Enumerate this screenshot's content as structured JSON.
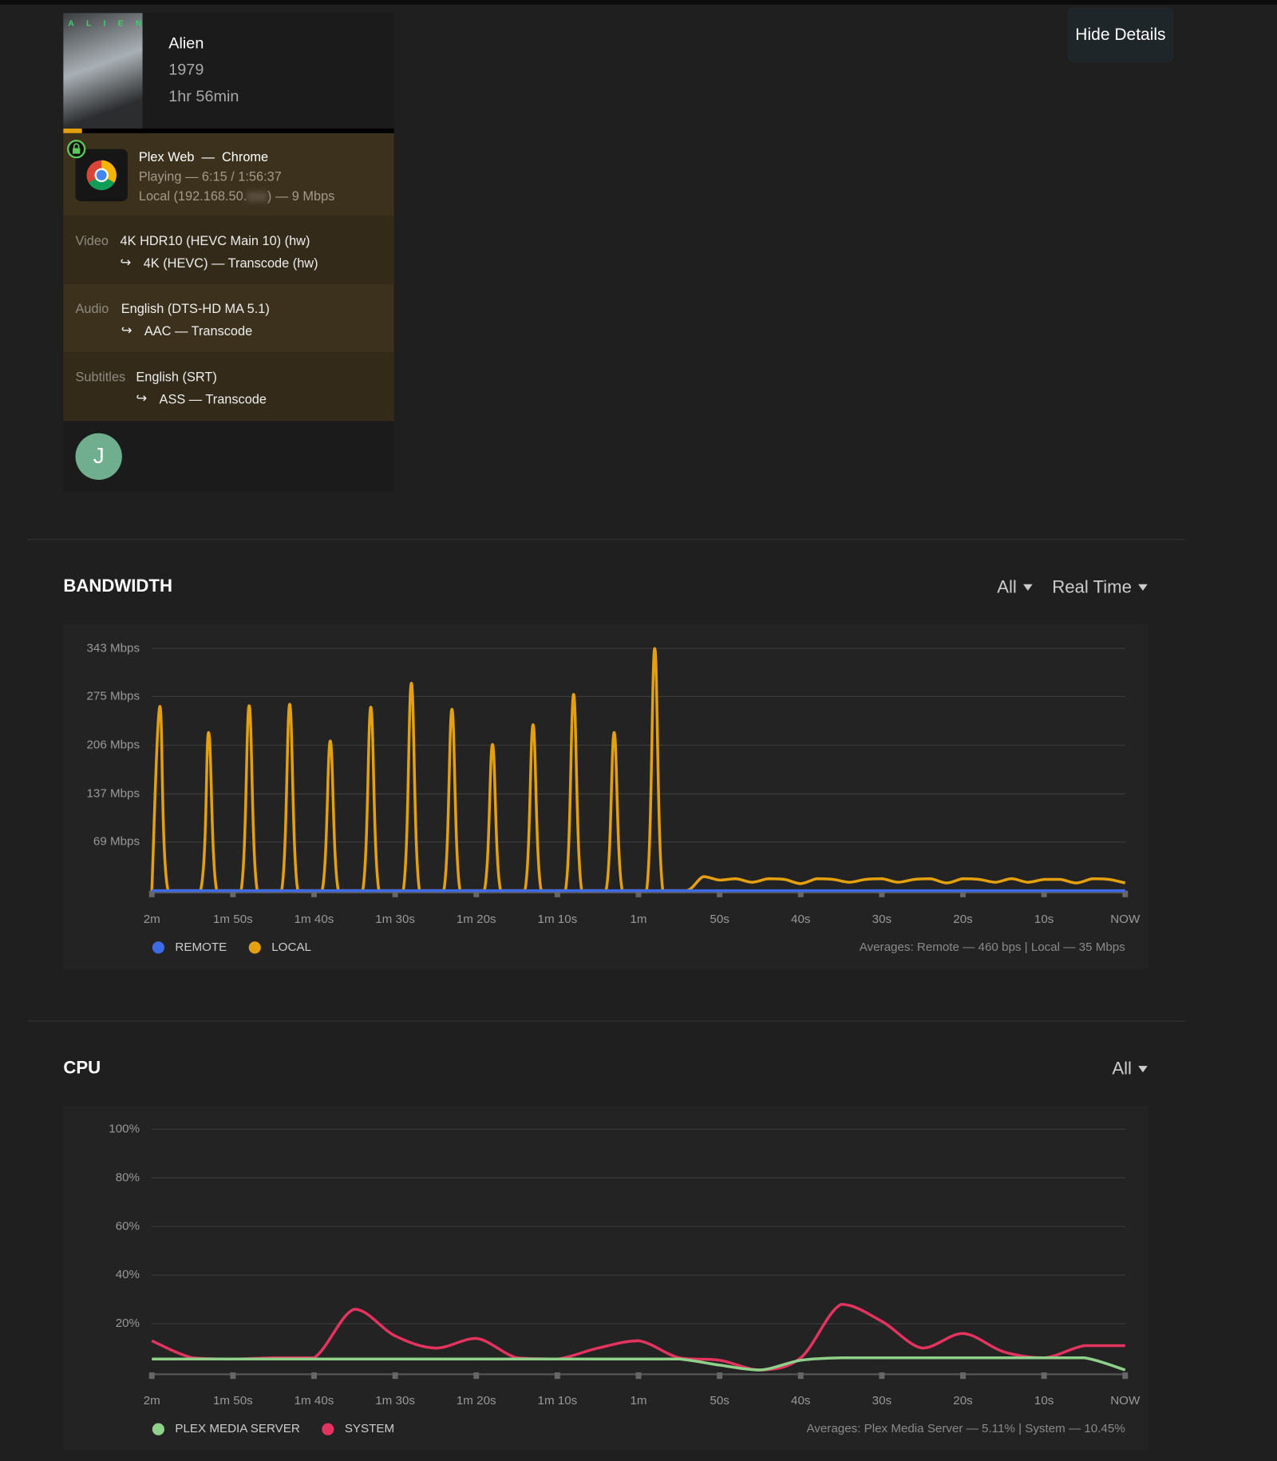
{
  "top_button": "Hide Details",
  "session": {
    "poster_title": "ALIEN",
    "title": "Alien",
    "year": "1979",
    "duration": "1hr 56min",
    "player": "Plex Web  —  Chrome",
    "state": "Playing — 6:15 / 1:56:37",
    "network_prefix": "Local (192.168.50.",
    "network_suffix": ") — 9 Mbps",
    "streams": [
      {
        "label": "Video",
        "source": "4K HDR10 (HEVC Main 10) (hw)",
        "target": "4K (HEVC) — Transcode (hw)"
      },
      {
        "label": "Audio",
        "source": "English (DTS-HD MA 5.1)",
        "target": "AAC — Transcode"
      },
      {
        "label": "Subtitles",
        "source": "English (SRT)",
        "target": "ASS — Transcode"
      }
    ],
    "user_initial": "J"
  },
  "controls": {
    "bandwidth": [
      "All",
      "Real Time"
    ],
    "cpu": [
      "All"
    ]
  },
  "chart_data": [
    {
      "type": "line",
      "title": "BANDWIDTH",
      "curve": "smooth",
      "x": [
        -120,
        -119,
        -118,
        -114,
        -113,
        -112,
        -109,
        -108,
        -107,
        -104,
        -103,
        -102,
        -99,
        -98,
        -97,
        -94,
        -93,
        -92,
        -89,
        -88,
        -87,
        -84,
        -83,
        -82,
        -79,
        -78,
        -77,
        -74,
        -73,
        -72,
        -69,
        -68,
        -67,
        -64,
        -63,
        -62,
        -59,
        -58,
        -57,
        -54,
        -52,
        -50,
        -48,
        -46,
        -44,
        -42,
        -40,
        -38,
        -36,
        -34,
        -32,
        -30,
        -28,
        -26,
        -24,
        -22,
        -20,
        -18,
        -16,
        -14,
        -12,
        -10,
        -8,
        -6,
        -4,
        -2,
        0
      ],
      "xlim": [
        -120,
        0
      ],
      "xticks": [
        {
          "value": -120,
          "label": "2m"
        },
        {
          "value": -110,
          "label": "1m 50s"
        },
        {
          "value": -100,
          "label": "1m 40s"
        },
        {
          "value": -90,
          "label": "1m 30s"
        },
        {
          "value": -80,
          "label": "1m 20s"
        },
        {
          "value": -70,
          "label": "1m 10s"
        },
        {
          "value": -60,
          "label": "1m"
        },
        {
          "value": -50,
          "label": "50s"
        },
        {
          "value": -40,
          "label": "40s"
        },
        {
          "value": -30,
          "label": "30s"
        },
        {
          "value": -20,
          "label": "20s"
        },
        {
          "value": -10,
          "label": "10s"
        },
        {
          "value": 0,
          "label": "NOW"
        }
      ],
      "ylim": [
        0,
        343
      ],
      "yticks": [
        {
          "value": 343,
          "label": "343 Mbps"
        },
        {
          "value": 275,
          "label": "275 Mbps"
        },
        {
          "value": 206,
          "label": "206 Mbps"
        },
        {
          "value": 137,
          "label": "137 Mbps"
        },
        {
          "value": 69,
          "label": "69 Mbps"
        }
      ],
      "grid": true,
      "series": [
        {
          "name": "REMOTE",
          "color": "#3d6be8",
          "values": [
            0,
            0,
            0,
            0,
            0,
            0,
            0,
            0,
            0,
            0,
            0,
            0,
            0,
            0,
            0,
            0,
            0,
            0,
            0,
            0,
            0,
            0,
            0,
            0,
            0,
            0,
            0,
            0,
            0,
            0,
            0,
            0,
            0,
            0,
            0,
            0,
            0,
            0,
            0,
            0,
            0,
            0,
            0,
            0,
            0,
            0,
            0,
            0,
            0,
            0,
            0,
            0,
            0,
            0,
            0,
            0,
            0,
            0,
            0,
            0,
            0,
            0,
            0,
            0,
            0,
            0,
            0
          ]
        },
        {
          "name": "LOCAL",
          "color": "#e5a00d",
          "values": [
            0,
            261,
            0,
            0,
            224,
            0,
            0,
            262,
            0,
            0,
            264,
            0,
            0,
            212,
            0,
            0,
            260,
            0,
            0,
            294,
            0,
            0,
            257,
            0,
            0,
            207,
            0,
            0,
            235,
            0,
            0,
            278,
            0,
            0,
            224,
            0,
            0,
            343,
            0,
            0,
            20,
            15,
            17,
            12,
            17,
            16,
            10,
            17,
            16,
            12,
            16,
            17,
            12,
            16,
            17,
            11,
            17,
            16,
            12,
            17,
            12,
            16,
            16,
            11,
            17,
            16,
            11
          ]
        }
      ],
      "averages": "Averages: Remote — 460 bps | Local — 35 Mbps"
    },
    {
      "type": "line",
      "title": "CPU",
      "curve": "smooth",
      "x": [
        -120,
        -115,
        -110,
        -105,
        -100,
        -95,
        -90,
        -85,
        -80,
        -75,
        -70,
        -65,
        -60,
        -55,
        -50,
        -45,
        -40,
        -35,
        -30,
        -25,
        -20,
        -15,
        -10,
        -5,
        0
      ],
      "xlim": [
        -120,
        0
      ],
      "xticks": [
        {
          "value": -120,
          "label": "2m"
        },
        {
          "value": -110,
          "label": "1m 50s"
        },
        {
          "value": -100,
          "label": "1m 40s"
        },
        {
          "value": -90,
          "label": "1m 30s"
        },
        {
          "value": -80,
          "label": "1m 20s"
        },
        {
          "value": -70,
          "label": "1m 10s"
        },
        {
          "value": -60,
          "label": "1m"
        },
        {
          "value": -50,
          "label": "50s"
        },
        {
          "value": -40,
          "label": "40s"
        },
        {
          "value": -30,
          "label": "30s"
        },
        {
          "value": -20,
          "label": "20s"
        },
        {
          "value": -10,
          "label": "10s"
        },
        {
          "value": 0,
          "label": "NOW"
        }
      ],
      "ylim": [
        0,
        100
      ],
      "yticks": [
        {
          "value": 100,
          "label": "100%"
        },
        {
          "value": 80,
          "label": "80%"
        },
        {
          "value": 60,
          "label": "60%"
        },
        {
          "value": 40,
          "label": "40%"
        },
        {
          "value": 20,
          "label": "20%"
        }
      ],
      "grid": true,
      "series": [
        {
          "name": "PLEX MEDIA SERVER",
          "color": "#8fd18a",
          "values": [
            5.5,
            5.5,
            5.5,
            5.5,
            5.5,
            5.5,
            5.5,
            5.5,
            5.5,
            5.5,
            5.5,
            5.5,
            5.5,
            5.5,
            3,
            1,
            5,
            6,
            6,
            6,
            6,
            6,
            6,
            6,
            1
          ]
        },
        {
          "name": "SYSTEM",
          "color": "#e5335f",
          "values": [
            13,
            6,
            5.5,
            6,
            6,
            26,
            15,
            10,
            14,
            6,
            5.5,
            10,
            13,
            6,
            5,
            1,
            6,
            28,
            21,
            10,
            16,
            8.5,
            6,
            11,
            11
          ]
        }
      ],
      "averages": "Averages: Plex Media Server — 5.11% | System — 10.45%"
    }
  ]
}
